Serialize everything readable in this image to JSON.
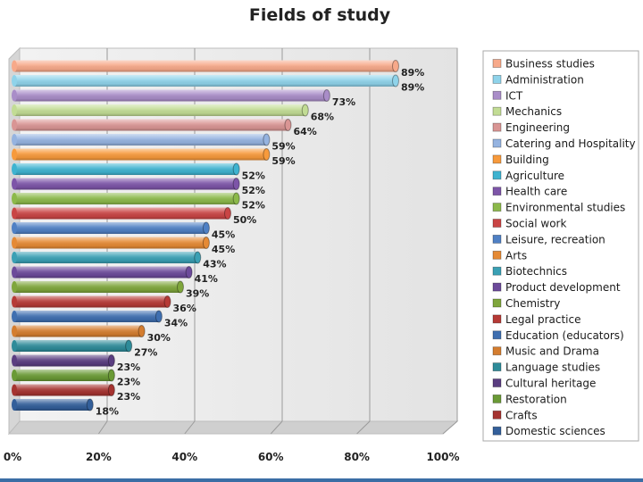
{
  "chart_data": {
    "type": "bar",
    "orientation": "horizontal",
    "title": "Fields of study",
    "xlabel": "",
    "ylabel": "",
    "xlim": [
      0,
      100
    ],
    "tick_labels": [
      "0%",
      "20%",
      "40%",
      "60%",
      "80%",
      "100%"
    ],
    "legend_position": "right",
    "grid": true,
    "categories": [
      "Business studies",
      "Administration",
      "ICT",
      "Mechanics",
      "Engineering",
      "Catering and Hospitality",
      "Building",
      "Agriculture",
      "Health care",
      "Environmental studies",
      "Social work",
      "Leisure, recreation",
      "Arts",
      "Biotechnics",
      "Product development",
      "Chemistry",
      "Legal practice",
      "Education  (educators)",
      "Music and Drama",
      "Language studies",
      "Cultural heritage",
      "Restoration",
      "Crafts",
      "Domestic sciences"
    ],
    "values": [
      89,
      89,
      73,
      68,
      64,
      59,
      59,
      52,
      52,
      52,
      50,
      45,
      45,
      43,
      41,
      39,
      36,
      34,
      30,
      27,
      23,
      23,
      23,
      18
    ],
    "data_labels": [
      "89%",
      "89%",
      "73%",
      "68%",
      "64%",
      "59%",
      "59%",
      "52%",
      "52%",
      "52%",
      "50%",
      "45%",
      "45%",
      "43%",
      "41%",
      "39%",
      "36%",
      "34%",
      "30%",
      "27%",
      "23%",
      "23%",
      "23%",
      "18%"
    ],
    "colors": [
      "#f7a98a",
      "#8fd3ea",
      "#a98dc8",
      "#c2dc94",
      "#d99594",
      "#95b3e0",
      "#f79a3c",
      "#3fb3d0",
      "#7d55a8",
      "#8cb94b",
      "#c94545",
      "#4f80c4",
      "#e58a35",
      "#3aa0b4",
      "#6c4a9a",
      "#7fa63c",
      "#b63a36",
      "#3f6fb0",
      "#d47d2f",
      "#2e8b99",
      "#5a3d80",
      "#6a9a36",
      "#a53330",
      "#335f9a"
    ]
  }
}
